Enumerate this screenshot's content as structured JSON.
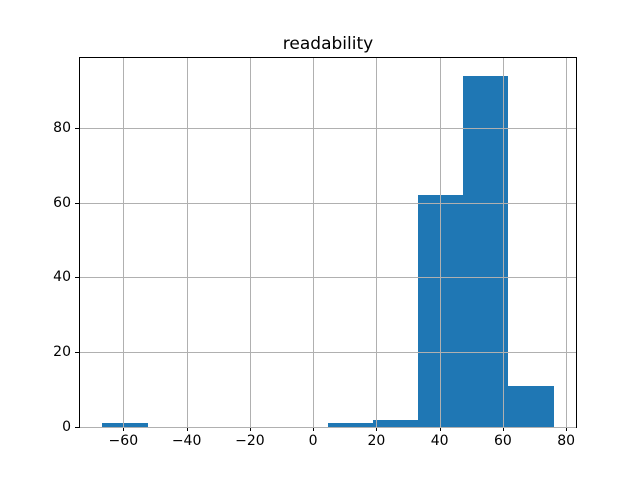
{
  "chart_data": {
    "type": "bar",
    "subtype": "histogram",
    "title": "readability",
    "xlabel": "",
    "ylabel": "",
    "bin_edges": [
      -66.6,
      -52.3,
      -38.1,
      -23.8,
      -9.5,
      4.7,
      19.0,
      33.2,
      47.5,
      61.7,
      76.0
    ],
    "counts": [
      1,
      0,
      0,
      0,
      0,
      1,
      2,
      62,
      94,
      11
    ],
    "xticks": [
      -60,
      -40,
      -20,
      0,
      20,
      40,
      60,
      80
    ],
    "xtick_labels": [
      "−60",
      "−40",
      "−20",
      "0",
      "20",
      "40",
      "60",
      "80"
    ],
    "yticks": [
      0,
      20,
      40,
      60,
      80
    ],
    "ytick_labels": [
      "0",
      "20",
      "40",
      "60",
      "80"
    ],
    "xlim": [
      -73.7,
      83.1
    ],
    "ylim": [
      0,
      98.7
    ],
    "bar_color": "#1f77b4",
    "grid": true,
    "grid_color": "#b0b0b0",
    "grid_above_bars": true,
    "background_color": "#ffffff",
    "legend": null
  }
}
